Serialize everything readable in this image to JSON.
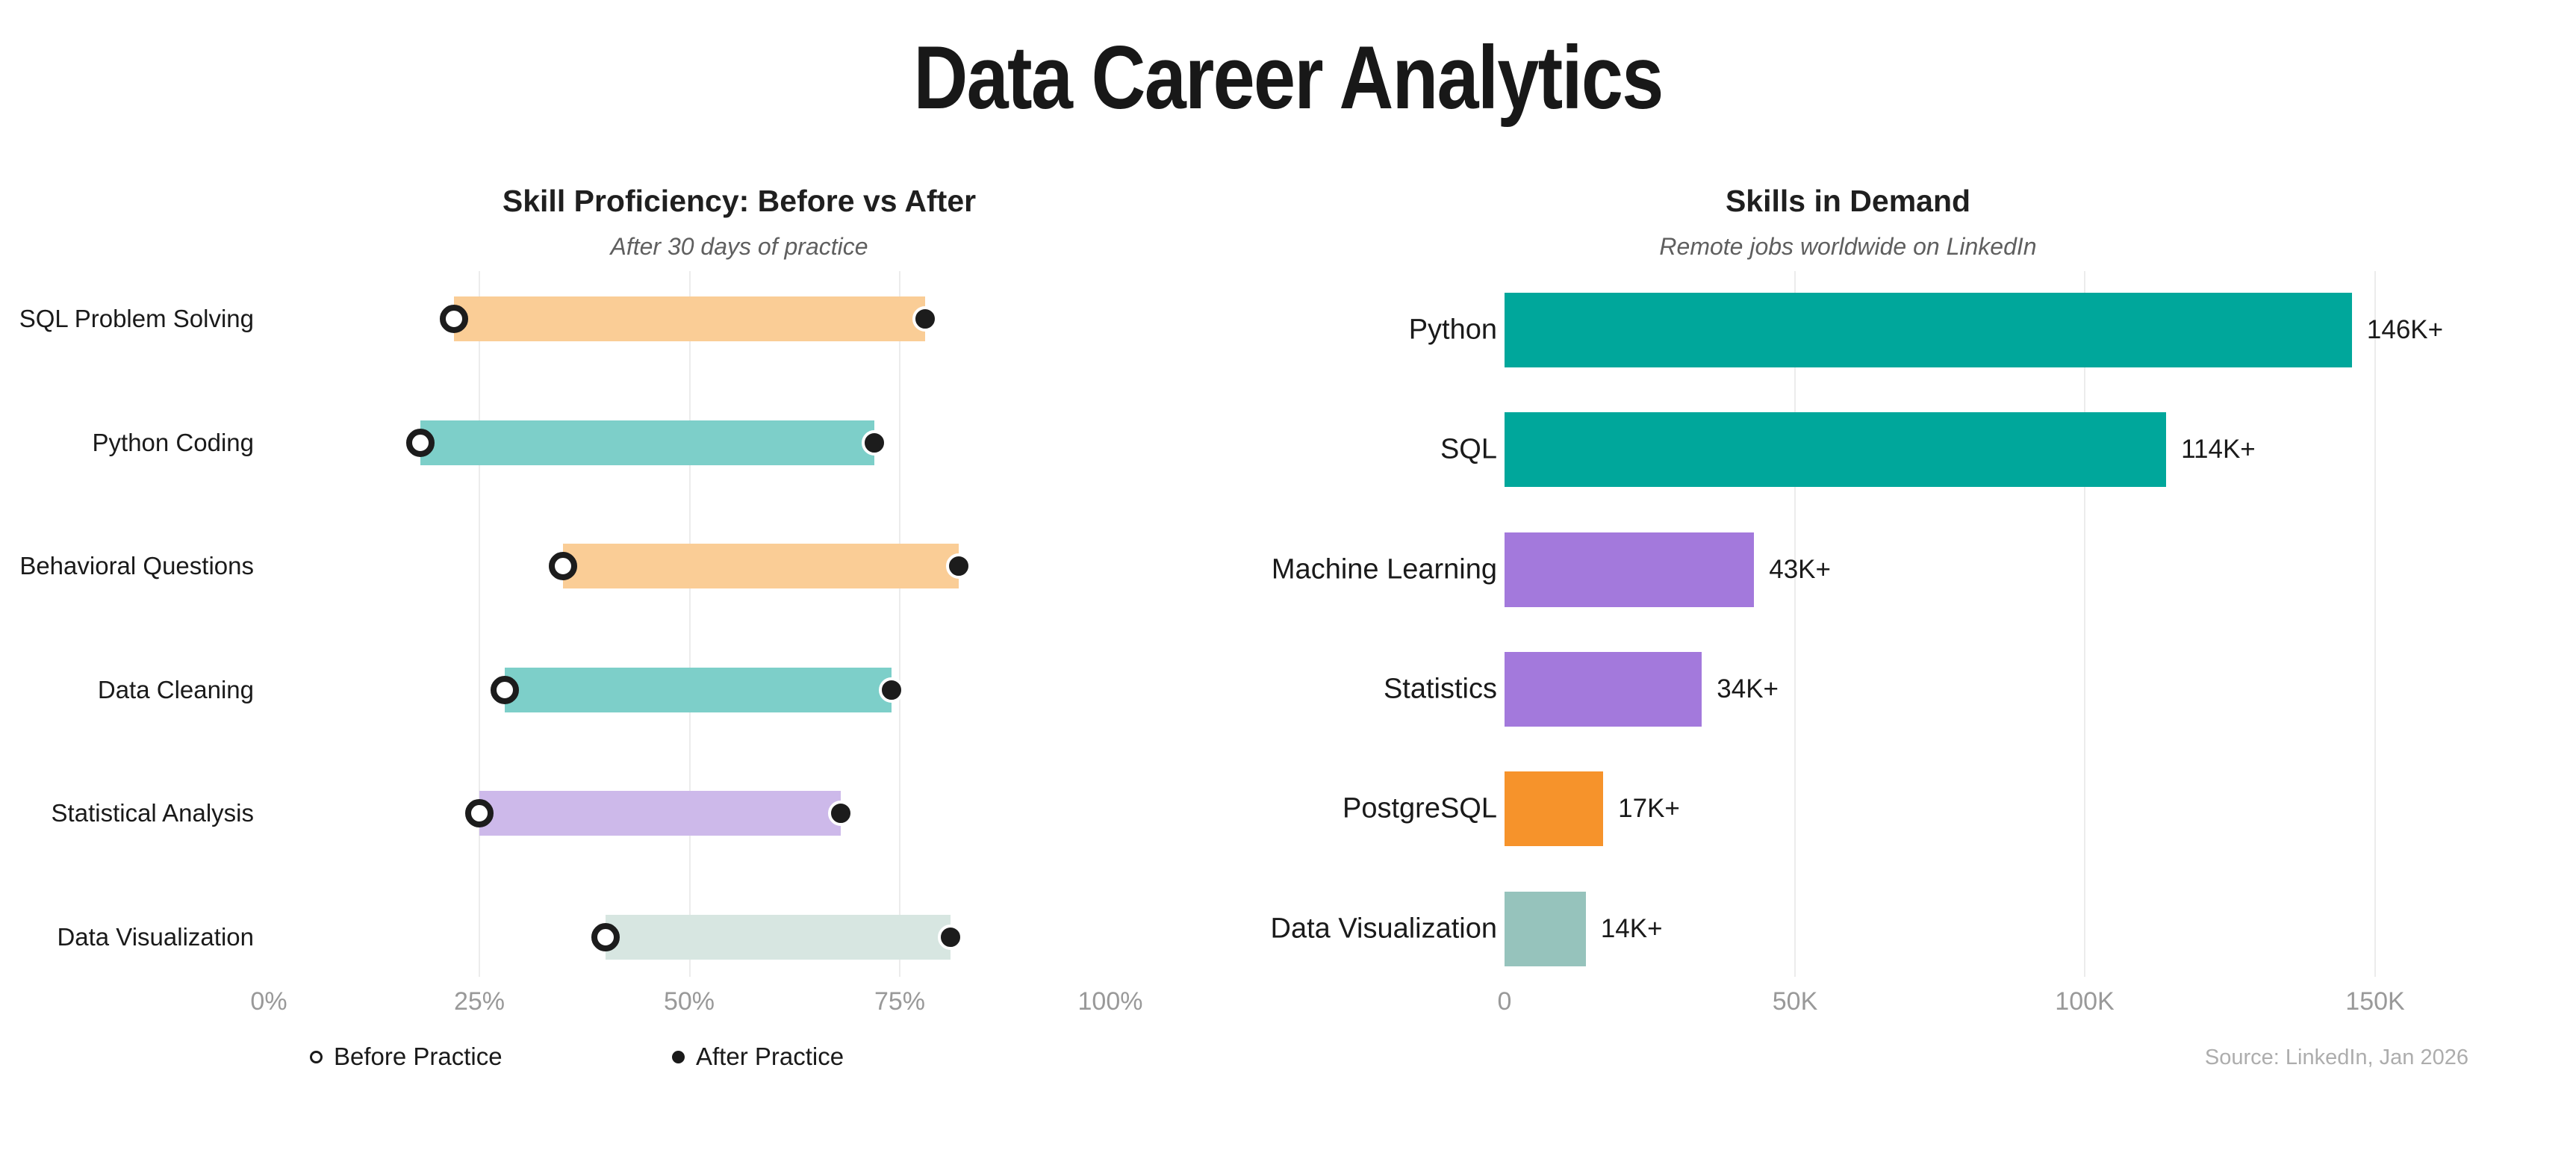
{
  "page": {
    "title": "Data Career Analytics"
  },
  "colors": {
    "text_dark": "#1a1a1a",
    "tick_gray": "#999999",
    "subtitle_gray": "#5f5f5f",
    "source_gray": "#adadad",
    "gridline": "#ececec",
    "background": "#ffffff"
  },
  "chart_data": [
    {
      "type": "bar",
      "subtype": "dumbbell",
      "orientation": "horizontal",
      "title": "Skill Proficiency: Before vs After",
      "subtitle": "After 30 days of practice",
      "categories": [
        "SQL Problem Solving",
        "Python Coding",
        "Behavioral Questions",
        "Data Cleaning",
        "Statistical Analysis",
        "Data Visualization"
      ],
      "series": [
        {
          "name": "Before Practice",
          "values": [
            22,
            18,
            35,
            28,
            25,
            40
          ],
          "marker": {
            "fill": "#ffffff",
            "stroke": "#1c1c1c"
          }
        },
        {
          "name": "After Practice",
          "values": [
            78,
            72,
            82,
            74,
            68,
            81
          ],
          "marker": {
            "fill": "#1c1c1c",
            "stroke": "#ffffff"
          }
        }
      ],
      "bar_colors": [
        "#FACD96",
        "#7DCFC9",
        "#FACD96",
        "#7DCFC9",
        "#CDB9EA",
        "#D7E6E1"
      ],
      "xlim": [
        0,
        100
      ],
      "x_tick_values": [
        0,
        25,
        50,
        75,
        100
      ],
      "x_tick_labels": [
        "0%",
        "25%",
        "50%",
        "75%",
        "100%"
      ],
      "gridlines_at": [
        25,
        50,
        75
      ],
      "grid": true,
      "legend_position": "bottom"
    },
    {
      "type": "bar",
      "orientation": "horizontal",
      "title": "Skills in Demand",
      "subtitle": "Remote jobs worldwide on LinkedIn",
      "categories": [
        "Python",
        "SQL",
        "Machine Learning",
        "Statistics",
        "PostgreSQL",
        "Data Visualization"
      ],
      "values": [
        146000,
        114000,
        43000,
        34000,
        17000,
        14000
      ],
      "value_labels": [
        "146K+",
        "114K+",
        "43K+",
        "34K+",
        "17K+",
        "14K+"
      ],
      "bar_colors": [
        "#00A79B",
        "#00A79B",
        "#A379DC",
        "#A379DC",
        "#F6932B",
        "#96C3BC"
      ],
      "xlim": [
        0,
        150000
      ],
      "x_tick_values": [
        0,
        50000,
        100000,
        150000
      ],
      "x_tick_labels": [
        "0",
        "50K",
        "100K",
        "150K"
      ],
      "gridlines_at": [
        50000,
        100000,
        150000
      ],
      "grid": true,
      "source": "Source: LinkedIn, Jan 2026"
    }
  ]
}
